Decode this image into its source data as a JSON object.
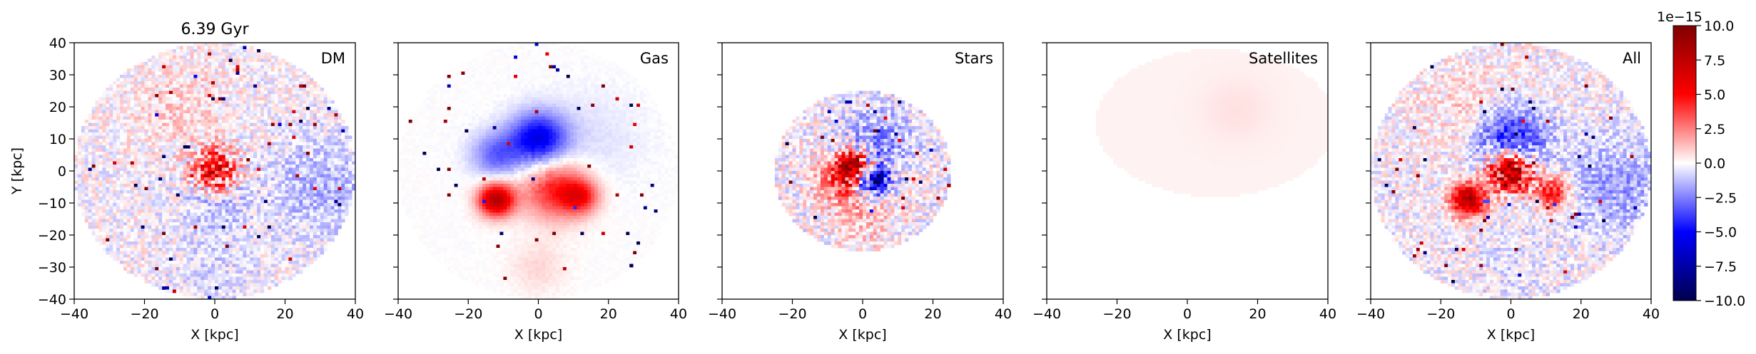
{
  "figure": {
    "time_label": "6.39 Gyr",
    "colorbar": {
      "scale_label": "1e−15",
      "range": [
        -10.0,
        10.0
      ],
      "ticks": [
        10.0,
        7.5,
        5.0,
        2.5,
        0.0,
        -2.5,
        -5.0,
        -7.5,
        -10.0
      ],
      "tick_labels": [
        "10.0",
        "7.5",
        "5.0",
        "2.5",
        "0.0",
        "−2.5",
        "−5.0",
        "−7.5",
        "−10.0"
      ],
      "colormap": "seismic",
      "colors": {
        "min": "#00004d",
        "low": "#0000ff",
        "mid": "#ffffff",
        "high": "#ff0000",
        "max": "#7f0000"
      }
    }
  },
  "chart_data": [
    {
      "type": "heatmap",
      "panel": "DM",
      "title": "6.39 Gyr",
      "xlabel": "X [kpc]",
      "ylabel": "Y [kpc]",
      "xlim": [
        -40,
        40
      ],
      "ylim": [
        -40,
        40
      ],
      "xticks": [
        -40,
        -20,
        0,
        20,
        40
      ],
      "yticks": [
        40,
        30,
        20,
        10,
        0,
        -10,
        -20,
        -30,
        -40
      ],
      "xtick_labels": [
        "−40",
        "−20",
        "0",
        "20",
        "40"
      ],
      "ytick_labels": [
        "40",
        "30",
        "20",
        "10",
        "0",
        "−10",
        "−20",
        "−30",
        "−40"
      ],
      "disk_radius_kpc": 40,
      "features": [
        {
          "x": 0,
          "y": 0,
          "r": 6,
          "value": 6.0
        },
        {
          "x": -10,
          "y": 20,
          "r": 14,
          "value": 0.8
        },
        {
          "x": 30,
          "y": -5,
          "r": 15,
          "value": -1.5
        },
        {
          "x": 0,
          "y": -10,
          "r": 10,
          "value": -1.2
        },
        {
          "x": 0,
          "y": -30,
          "r": 12,
          "value": -0.6
        }
      ],
      "noise": 1.2
    },
    {
      "type": "heatmap",
      "panel": "Gas",
      "xlabel": "X [kpc]",
      "xlim": [
        -40,
        40
      ],
      "ylim": [
        -40,
        40
      ],
      "xticks": [
        -40,
        -20,
        0,
        20,
        40
      ],
      "xtick_labels": [
        "−40",
        "−20",
        "0",
        "20",
        "40"
      ],
      "disk_radius_kpc": 40,
      "features": [
        {
          "x": 0,
          "y": 10,
          "r": 8,
          "value": -5.5
        },
        {
          "x": -12,
          "y": 5,
          "r": 7,
          "value": -3.0
        },
        {
          "x": -12,
          "y": -9,
          "r": 5,
          "value": 8.0
        },
        {
          "x": 5,
          "y": -6,
          "r": 9,
          "value": 4.5
        },
        {
          "x": 12,
          "y": -8,
          "r": 5,
          "value": 4.0
        },
        {
          "x": 15,
          "y": 10,
          "r": 15,
          "value": -0.6
        },
        {
          "x": 0,
          "y": -30,
          "r": 8,
          "value": 0.8
        }
      ],
      "noise": 0.15
    },
    {
      "type": "heatmap",
      "panel": "Stars",
      "xlabel": "X [kpc]",
      "xlim": [
        -40,
        40
      ],
      "ylim": [
        -40,
        40
      ],
      "xticks": [
        -40,
        -20,
        0,
        20,
        40
      ],
      "xtick_labels": [
        "−40",
        "−20",
        "0",
        "20",
        "40"
      ],
      "disk_radius_kpc": 25,
      "features": [
        {
          "x": -3,
          "y": 2,
          "r": 4,
          "value": 9.0
        },
        {
          "x": 3,
          "y": -3,
          "r": 4,
          "value": -8.0
        },
        {
          "x": -6,
          "y": -3,
          "r": 7,
          "value": 3.5
        },
        {
          "x": 5,
          "y": 10,
          "r": 10,
          "value": -2.0
        },
        {
          "x": 0,
          "y": -15,
          "r": 8,
          "value": 1.2
        }
      ],
      "noise": 1.5
    },
    {
      "type": "heatmap",
      "panel": "Satellites",
      "xlabel": "X [kpc]",
      "xlim": [
        -40,
        40
      ],
      "ylim": [
        -40,
        40
      ],
      "xticks": [
        -40,
        -20,
        0,
        20,
        40
      ],
      "xtick_labels": [
        "−40",
        "−20",
        "0",
        "20",
        "40"
      ],
      "disk_radius_kpc": 0,
      "ellipse": {
        "cx": 8,
        "cy": 15,
        "rx": 34,
        "ry": 23,
        "value": 0.25
      },
      "features": [
        {
          "x": 14,
          "y": 19,
          "r": 10,
          "value": 0.35
        }
      ],
      "noise": 0
    },
    {
      "type": "heatmap",
      "panel": "All",
      "xlabel": "X [kpc]",
      "xlim": [
        -40,
        40
      ],
      "ylim": [
        -40,
        40
      ],
      "xticks": [
        -40,
        -20,
        0,
        20,
        40
      ],
      "xtick_labels": [
        "−40",
        "−20",
        "0",
        "20",
        "40"
      ],
      "disk_radius_kpc": 40,
      "features": [
        {
          "x": 0,
          "y": 0,
          "r": 6,
          "value": 9.0
        },
        {
          "x": 0,
          "y": 10,
          "r": 10,
          "value": -4.5
        },
        {
          "x": -12,
          "y": -9,
          "r": 5,
          "value": 8.0
        },
        {
          "x": 12,
          "y": -7,
          "r": 5,
          "value": 5.0
        },
        {
          "x": -10,
          "y": 20,
          "r": 14,
          "value": 0.9
        },
        {
          "x": 30,
          "y": -5,
          "r": 15,
          "value": -1.8
        },
        {
          "x": 0,
          "y": -30,
          "r": 12,
          "value": -0.5
        }
      ],
      "noise": 1.3
    }
  ]
}
